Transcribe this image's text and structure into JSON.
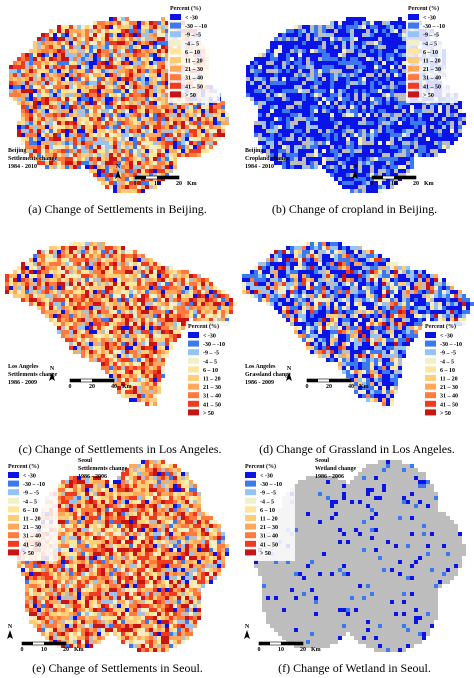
{
  "legend": {
    "title": "Percent (%)",
    "labels": [
      "< -30",
      "-30 – -10",
      "-9 – -5",
      "-4 – 5",
      "6 – 10",
      "11 – 20",
      "21 – 30",
      "31 – 40",
      "41 – 50",
      "> 50"
    ],
    "colors": [
      "#0a14e6",
      "#3c78f0",
      "#96c3f5",
      "#f2f0c8",
      "#ffe69a",
      "#ffcc78",
      "#ffa85a",
      "#ff7a3c",
      "#f03c1e",
      "#c81414"
    ]
  },
  "north": "N",
  "panels": [
    {
      "caption": "(a) Change of Settlements in Beijing.",
      "map_label": [
        "Beijing",
        "Settlements change",
        "1984 - 2010"
      ],
      "scale": [
        "0",
        "10",
        "20",
        "Km"
      ]
    },
    {
      "caption": "(b) Change of cropland in Beijing.",
      "map_label": [
        "Beijing",
        "Cropland change",
        "1984 - 2010"
      ],
      "scale": [
        "0",
        "10",
        "20",
        "Km"
      ]
    },
    {
      "caption": "(c) Change of Settlements in Los Angeles.",
      "map_label": [
        "Los Angeles",
        "Settlements change",
        "1986 - 2009"
      ],
      "scale": [
        "0",
        "20",
        "40",
        "Km"
      ]
    },
    {
      "caption": "(d) Change of Grassland in Los Angeles.",
      "map_label": [
        "Los Angeles",
        "Grassland change",
        "1986 - 2009"
      ],
      "scale": [
        "0",
        "20",
        "40",
        "Km"
      ]
    },
    {
      "caption": "(e) Change of Settlements in Seoul.",
      "map_label": [
        "Seoul",
        "Settlements change",
        "1986 - 2006"
      ],
      "scale": [
        "0",
        "10",
        "20",
        "Km"
      ]
    },
    {
      "caption": "(f) Change of Wetland in Seoul.",
      "map_label": [
        "Seoul",
        "Wetland change",
        "1986 - 2006"
      ],
      "scale": [
        "0",
        "10",
        "20",
        "Km"
      ]
    }
  ]
}
